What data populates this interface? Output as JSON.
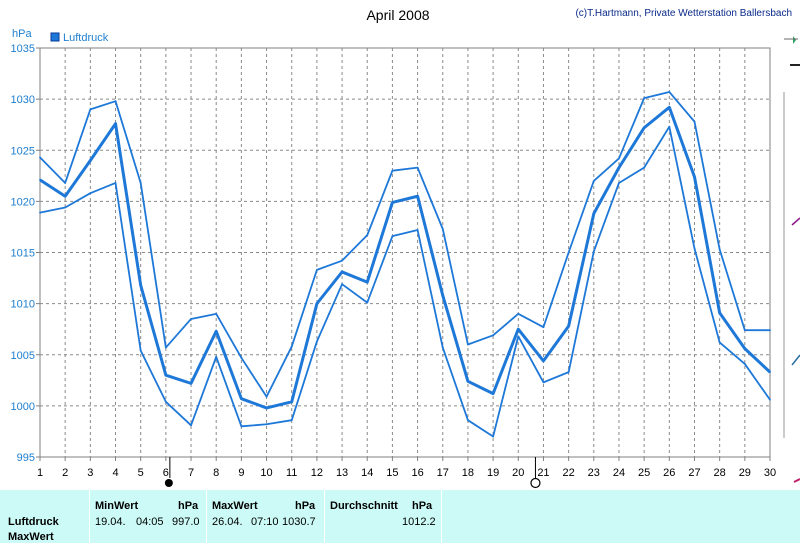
{
  "header": {
    "title": "April 2008",
    "credit": "(c)T.Hartmann, Private Wetterstation Ballersbach"
  },
  "chart_data": {
    "type": "line",
    "title": "April 2008",
    "ylabel": "hPa",
    "ylim": [
      995,
      1035
    ],
    "yticks": [
      995,
      1000,
      1005,
      1010,
      1015,
      1020,
      1025,
      1030,
      1035
    ],
    "x": [
      1,
      2,
      3,
      4,
      5,
      6,
      7,
      8,
      9,
      10,
      11,
      12,
      13,
      14,
      15,
      16,
      17,
      18,
      19,
      20,
      21,
      22,
      23,
      24,
      25,
      26,
      27,
      28,
      29,
      30
    ],
    "legend": "Luftdruck",
    "grid": true,
    "series": [
      {
        "role": "max",
        "color": "#1e78d8",
        "values": [
          1024.3,
          1021.8,
          1029.0,
          1029.8,
          1021.8,
          1005.7,
          1008.5,
          1009.0,
          1004.7,
          1000.9,
          1005.8,
          1013.3,
          1014.2,
          1016.7,
          1023.0,
          1023.3,
          1017.3,
          1006.0,
          1006.9,
          1009.0,
          1007.7,
          1015.0,
          1022.0,
          1024.2,
          1030.1,
          1030.7,
          1027.8,
          1015.3,
          1007.4,
          1007.4
        ]
      },
      {
        "role": "avg",
        "color": "#1e78d8",
        "values": [
          1022.1,
          1020.5,
          1024.0,
          1027.6,
          1011.8,
          1003.0,
          1002.2,
          1007.3,
          1000.7,
          999.8,
          1000.4,
          1010.0,
          1013.1,
          1012.1,
          1019.9,
          1020.5,
          1010.8,
          1002.4,
          1001.2,
          1007.5,
          1004.4,
          1007.8,
          1018.8,
          1023.3,
          1027.2,
          1029.2,
          1022.4,
          1009.1,
          1005.6,
          1003.3
        ]
      },
      {
        "role": "min",
        "color": "#1e78d8",
        "values": [
          1018.9,
          1019.4,
          1020.8,
          1021.8,
          1005.4,
          1000.4,
          998.1,
          1004.8,
          998.0,
          998.2,
          998.6,
          1006.3,
          1011.9,
          1010.1,
          1016.6,
          1017.2,
          1005.7,
          998.6,
          997.0,
          1006.8,
          1002.3,
          1003.3,
          1015.1,
          1021.8,
          1023.3,
          1027.3,
          1015.4,
          1006.2,
          1004.1,
          1000.6
        ]
      }
    ]
  },
  "markers": {
    "new_moon_day": 6,
    "full_moon_day": 21
  },
  "table": {
    "row1_label": "Luftdruck",
    "row2_label": "MaxWert",
    "min_label": "MinWert",
    "max_label": "MaxWert",
    "avg_label": "Durchschnitt",
    "unit": "hPa",
    "min_date": "19.04.",
    "min_time": "04:05",
    "min_value": "997.0",
    "max_date": "26.04.",
    "max_time": "07:10",
    "max_value": "1030.7",
    "avg_value": "1012.2"
  },
  "colors": {
    "line": "#1e78d8",
    "legend_box": "#1e78d8",
    "table_bg": "#ccfbf7",
    "axis_text": "#2080d0"
  }
}
